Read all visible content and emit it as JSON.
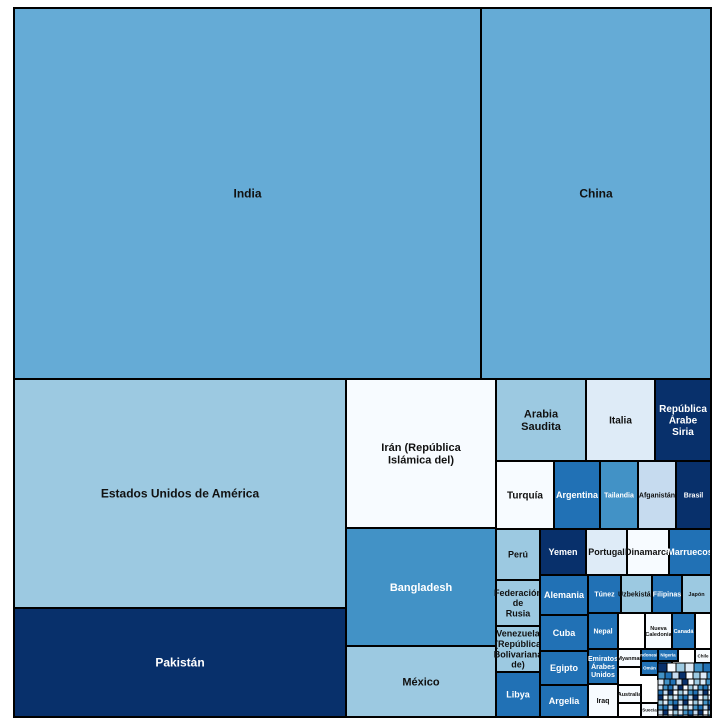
{
  "chart_data": {
    "type": "treemap",
    "title": "",
    "colors": {
      "light_blue": "#65ABD6",
      "pale_blue": "#9CC9E1",
      "very_pale": "#F7FBFF",
      "mid_blue": "#4292C6",
      "dark_blue": "#08306B",
      "royal_blue": "#2171B5",
      "ice_blue": "#DEEBF7",
      "powder_blue": "#C6DBEF"
    },
    "items": [
      {
        "label": "India",
        "value": 761.0,
        "color": "light_blue"
      },
      {
        "label": "China",
        "value": 385.2,
        "color": "light_blue"
      },
      {
        "label": "Estados Unidos de América",
        "value": 444.4,
        "color": "pale_blue"
      },
      {
        "label": "Pakistán",
        "value": 183.5,
        "color": "dark_blue"
      },
      {
        "label": "Irán (República Islámica del)",
        "value": 93.2,
        "color": "very_pale"
      },
      {
        "label": "Bangladesh",
        "value": 77.6,
        "color": "mid_blue"
      },
      {
        "label": "México",
        "value": 45.0,
        "color": "pale_blue"
      },
      {
        "label": "Arabia Saudita",
        "value": 21.8,
        "color": "pale_blue"
      },
      {
        "label": "Italia",
        "value": 17.4,
        "color": "ice_blue"
      },
      {
        "label": "República Árabe Siria",
        "value": 14.4,
        "color": "dark_blue"
      },
      {
        "label": "Turquía",
        "value": 12.1,
        "color": "very_pale"
      },
      {
        "label": "Argentina",
        "value": 10.8,
        "color": "royal_blue"
      },
      {
        "label": "Tailandia",
        "value": 8.1,
        "color": "mid_blue"
      },
      {
        "label": "Afganistán",
        "value": 7.7,
        "color": "powder_blue"
      },
      {
        "label": "Brasil",
        "value": 7.4,
        "color": "dark_blue"
      },
      {
        "label": "Perú",
        "value": 5.9,
        "color": "pale_blue"
      },
      {
        "label": "Federación de Rusia",
        "value": 5.6,
        "color": "pale_blue"
      },
      {
        "label": "Venezuela (República Bolivariana de)",
        "value": 5.1,
        "color": "pale_blue"
      },
      {
        "label": "Libya",
        "value": 5.0,
        "color": "royal_blue"
      },
      {
        "label": "Yemen",
        "value": 5.2,
        "color": "dark_blue"
      },
      {
        "label": "Portugal",
        "value": 4.8,
        "color": "ice_blue"
      },
      {
        "label": "Dinamarca",
        "value": 4.6,
        "color": "very_pale"
      },
      {
        "label": "Marruecos",
        "value": 4.4,
        "color": "royal_blue"
      },
      {
        "label": "Alemania",
        "value": 4.4,
        "color": "royal_blue"
      },
      {
        "label": "Cuba",
        "value": 3.9,
        "color": "royal_blue"
      },
      {
        "label": "Egipto",
        "value": 3.6,
        "color": "royal_blue"
      },
      {
        "label": "Argelia",
        "value": 3.4,
        "color": "royal_blue"
      },
      {
        "label": "Túnez",
        "value": 3.0,
        "color": "royal_blue"
      },
      {
        "label": "Uzbekistán",
        "value": 2.9,
        "color": "pale_blue"
      },
      {
        "label": "Filipinas",
        "value": 2.7,
        "color": "royal_blue"
      },
      {
        "label": "Japón",
        "value": 2.7,
        "color": "pale_blue"
      },
      {
        "label": "Nepal",
        "value": 2.5,
        "color": "royal_blue"
      },
      {
        "label": "Emiratos Árabes Unidos",
        "value": 2.0,
        "color": "royal_blue"
      },
      {
        "label": "Iraq",
        "value": 2.0,
        "color": "very_pale"
      },
      {
        "label": "Nueva Caledonia",
        "value": 1.6,
        "color": "very_pale"
      },
      {
        "label": "Canadá",
        "value": 1.4,
        "color": "royal_blue"
      },
      {
        "label": "Myanmar",
        "value": 1.3,
        "color": "very_pale"
      },
      {
        "label": "Indonesia",
        "value": 1.0,
        "color": "royal_blue"
      },
      {
        "label": "Nigeria",
        "value": 1.0,
        "color": "royal_blue"
      },
      {
        "label": "Omán",
        "value": 0.9,
        "color": "royal_blue"
      },
      {
        "label": "Viet Nam",
        "value": 0.9,
        "color": "royal_blue"
      },
      {
        "label": "Chile",
        "value": 0.9,
        "color": "very_pale"
      },
      {
        "label": "Australia",
        "value": 0.8,
        "color": "very_pale"
      },
      {
        "label": "Suecia",
        "value": 0.7,
        "color": "very_pale"
      }
    ]
  }
}
